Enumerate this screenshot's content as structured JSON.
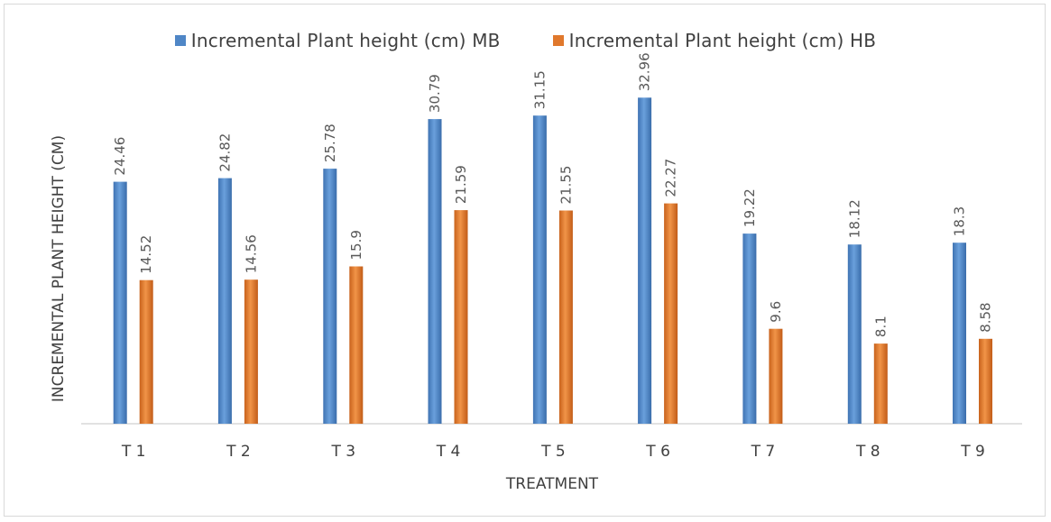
{
  "chart_data": {
    "type": "bar",
    "categories": [
      "T 1",
      "T 2",
      "T 3",
      "T 4",
      "T 5",
      "T 6",
      "T 7",
      "T 8",
      "T 9"
    ],
    "series": [
      {
        "name": "Incremental Plant height (cm) MB",
        "color": "#4f86c6",
        "values": [
          24.46,
          24.82,
          25.78,
          30.79,
          31.15,
          32.96,
          19.22,
          18.12,
          18.3
        ],
        "labels": [
          "24.46",
          "24.82",
          "25.78",
          "30.79",
          "31.15",
          "32.96",
          "19.22",
          "18.12",
          "18.3"
        ]
      },
      {
        "name": "Incremental Plant height (cm) HB",
        "color": "#e0782c",
        "values": [
          14.52,
          14.56,
          15.9,
          21.59,
          21.55,
          22.27,
          9.6,
          8.1,
          8.58
        ],
        "labels": [
          "14.52",
          "14.56",
          "15.9",
          "21.59",
          "21.55",
          "22.27",
          "9.6",
          "8.1",
          "8.58"
        ]
      }
    ],
    "xlabel": "TREATMENT",
    "ylabel": "INCREMENTAL PLANT HEIGHT (CM)",
    "ylim": [
      0,
      38
    ],
    "grid": false,
    "legend_position": "top"
  }
}
